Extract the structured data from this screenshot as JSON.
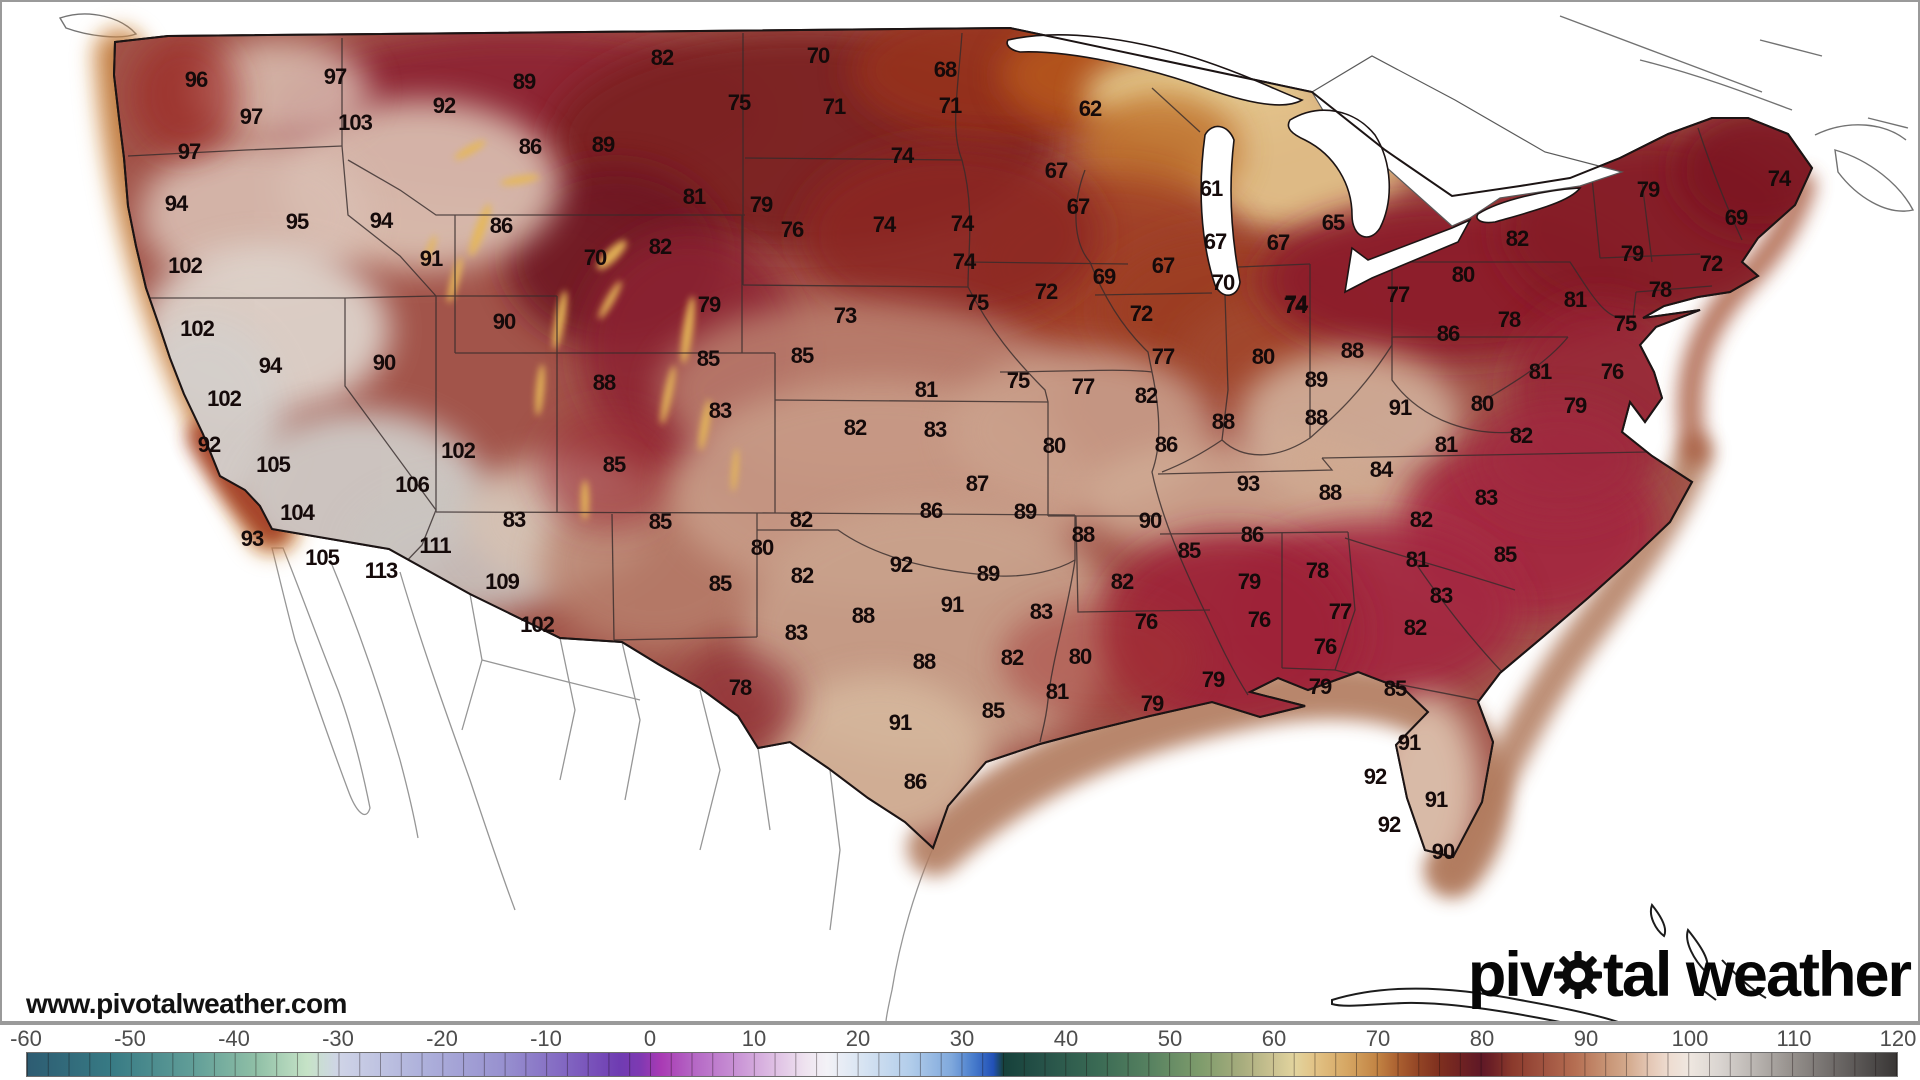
{
  "watermark": "www.pivotalweather.com",
  "logo": {
    "pre": "piv",
    "gear_icon": "gear",
    "post": "tal weather"
  },
  "colors": {
    "label": "#150a0a",
    "tick": "#4d4d4d",
    "divider": "#9a9a9a",
    "logo": "#060606",
    "land_base": "#a2544a",
    "coast_pacific_band": "#c07a40",
    "coast_gulf_band": "#b17a5d"
  },
  "colorbar": {
    "unit": "degF",
    "min": -60,
    "max": 120,
    "cell_step": 2,
    "ticks": [
      -60,
      -50,
      -40,
      -30,
      -20,
      -10,
      0,
      10,
      20,
      30,
      40,
      50,
      60,
      70,
      80,
      90,
      100,
      110,
      120
    ],
    "stops": [
      [
        -60,
        "#2d5c72"
      ],
      [
        -52,
        "#377a84"
      ],
      [
        -44,
        "#619e98"
      ],
      [
        -38,
        "#8fbfa6"
      ],
      [
        -33,
        "#c6e3c7"
      ],
      [
        -30,
        "#cfd4e7"
      ],
      [
        -22,
        "#aeb1db"
      ],
      [
        -14,
        "#9790cf"
      ],
      [
        -8,
        "#8165c1"
      ],
      [
        -3,
        "#6f3cb2"
      ],
      [
        -1,
        "#7e39b2"
      ],
      [
        1,
        "#a93ab4"
      ],
      [
        4,
        "#b465c4"
      ],
      [
        8,
        "#c78fd4"
      ],
      [
        12,
        "#dfc0e4"
      ],
      [
        15,
        "#efe4f0"
      ],
      [
        17,
        "#f3f2f7"
      ],
      [
        20,
        "#dbe6f3"
      ],
      [
        25,
        "#b2cdea"
      ],
      [
        29,
        "#7fa8dc"
      ],
      [
        31,
        "#4a7ecd"
      ],
      [
        33,
        "#2251b7"
      ],
      [
        34,
        "#16413b"
      ],
      [
        38,
        "#275349"
      ],
      [
        43,
        "#3a6a54"
      ],
      [
        48,
        "#568160"
      ],
      [
        53,
        "#7f9c6c"
      ],
      [
        57,
        "#a8ad7e"
      ],
      [
        60,
        "#ccc392"
      ],
      [
        62,
        "#e2d49e"
      ],
      [
        64,
        "#e2c285"
      ],
      [
        67,
        "#d6a764"
      ],
      [
        70,
        "#c28343"
      ],
      [
        72,
        "#aa5f30"
      ],
      [
        74,
        "#924425"
      ],
      [
        76,
        "#7e2f1f"
      ],
      [
        78,
        "#6f2222"
      ],
      [
        80,
        "#5f1826"
      ],
      [
        81,
        "#6c2026"
      ],
      [
        83,
        "#8b3a2c"
      ],
      [
        86,
        "#a05340"
      ],
      [
        89,
        "#b56e52"
      ],
      [
        92,
        "#c79374"
      ],
      [
        94,
        "#d3a98c"
      ],
      [
        96,
        "#e3c5b2"
      ],
      [
        98,
        "#eedcd0"
      ],
      [
        100,
        "#efe7e0"
      ],
      [
        103,
        "#d9d4d0"
      ],
      [
        106,
        "#bdb8b4"
      ],
      [
        110,
        "#948f8b"
      ],
      [
        114,
        "#6e6a68"
      ],
      [
        118,
        "#4a4746"
      ],
      [
        120,
        "#393635"
      ]
    ]
  },
  "map": {
    "type": "surface-temperature-analysis",
    "region": "CONUS",
    "temperature_labels": [
      [
        96,
        196,
        81
      ],
      [
        97,
        335,
        78
      ],
      [
        89,
        524,
        83
      ],
      [
        97,
        251,
        118
      ],
      [
        103,
        355,
        124
      ],
      [
        92,
        444,
        107
      ],
      [
        86,
        530,
        148
      ],
      [
        89,
        603,
        146
      ],
      [
        97,
        189,
        153
      ],
      [
        94,
        176,
        205
      ],
      [
        95,
        297,
        223
      ],
      [
        94,
        381,
        222
      ],
      [
        86,
        501,
        227
      ],
      [
        91,
        431,
        260
      ],
      [
        70,
        595,
        259
      ],
      [
        102,
        185,
        267
      ],
      [
        102,
        197,
        330
      ],
      [
        90,
        504,
        323
      ],
      [
        94,
        270,
        367
      ],
      [
        90,
        384,
        364
      ],
      [
        88,
        604,
        384
      ],
      [
        102,
        224,
        400
      ],
      [
        92,
        209,
        446
      ],
      [
        102,
        458,
        452
      ],
      [
        105,
        273,
        466
      ],
      [
        85,
        614,
        466
      ],
      [
        106,
        412,
        486
      ],
      [
        104,
        297,
        514
      ],
      [
        83,
        514,
        521
      ],
      [
        93,
        252,
        540
      ],
      [
        111,
        435,
        547
      ],
      [
        105,
        322,
        559
      ],
      [
        113,
        381,
        572
      ],
      [
        109,
        502,
        583
      ],
      [
        102,
        537,
        626
      ],
      [
        82,
        662,
        59
      ],
      [
        70,
        818,
        57
      ],
      [
        68,
        945,
        71
      ],
      [
        62,
        1090,
        110
      ],
      [
        75,
        739,
        104
      ],
      [
        71,
        834,
        108
      ],
      [
        71,
        950,
        107
      ],
      [
        74,
        902,
        157
      ],
      [
        67,
        1056,
        172
      ],
      [
        67,
        1078,
        208
      ],
      [
        61,
        1211,
        190
      ],
      [
        65,
        1333,
        224
      ],
      [
        81,
        694,
        198
      ],
      [
        79,
        761,
        206
      ],
      [
        76,
        792,
        231
      ],
      [
        74,
        884,
        226
      ],
      [
        74,
        962,
        225
      ],
      [
        82,
        660,
        248
      ],
      [
        67,
        1215,
        243
      ],
      [
        67,
        1278,
        244
      ],
      [
        74,
        964,
        263
      ],
      [
        67,
        1163,
        267
      ],
      [
        69,
        1104,
        278
      ],
      [
        70,
        1223,
        284
      ],
      [
        72,
        1046,
        293
      ],
      [
        72,
        1141,
        315
      ],
      [
        75,
        977,
        304
      ],
      [
        73,
        845,
        317
      ],
      [
        74,
        1295,
        307
      ],
      [
        79,
        709,
        306
      ],
      [
        85,
        708,
        360
      ],
      [
        85,
        802,
        357
      ],
      [
        77,
        1163,
        358
      ],
      [
        80,
        1263,
        358
      ],
      [
        88,
        1352,
        352
      ],
      [
        74,
        1779,
        180
      ],
      [
        69,
        1736,
        219
      ],
      [
        79,
        1648,
        191
      ],
      [
        82,
        1517,
        240
      ],
      [
        79,
        1632,
        255
      ],
      [
        72,
        1711,
        265
      ],
      [
        80,
        1463,
        276
      ],
      [
        78,
        1660,
        291
      ],
      [
        77,
        1398,
        296
      ],
      [
        74,
        1296,
        305
      ],
      [
        81,
        1575,
        301
      ],
      [
        78,
        1509,
        321
      ],
      [
        86,
        1448,
        335
      ],
      [
        75,
        1625,
        325
      ],
      [
        81,
        1540,
        373
      ],
      [
        76,
        1612,
        373
      ],
      [
        81,
        926,
        391
      ],
      [
        75,
        1018,
        382
      ],
      [
        77,
        1083,
        388
      ],
      [
        82,
        1146,
        397
      ],
      [
        88,
        1223,
        423
      ],
      [
        83,
        720,
        412
      ],
      [
        82,
        855,
        429
      ],
      [
        83,
        935,
        431
      ],
      [
        80,
        1054,
        447
      ],
      [
        86,
        1166,
        446
      ],
      [
        93,
        1248,
        485
      ],
      [
        87,
        977,
        485
      ],
      [
        86,
        931,
        512
      ],
      [
        89,
        1025,
        513
      ],
      [
        85,
        660,
        523
      ],
      [
        82,
        801,
        521
      ],
      [
        88,
        1083,
        536
      ],
      [
        90,
        1150,
        522
      ],
      [
        86,
        1252,
        536
      ],
      [
        80,
        762,
        549
      ],
      [
        85,
        1189,
        552
      ],
      [
        92,
        901,
        566
      ],
      [
        89,
        988,
        575
      ],
      [
        82,
        802,
        577
      ],
      [
        85,
        720,
        585
      ],
      [
        82,
        1122,
        583
      ],
      [
        79,
        1249,
        583
      ],
      [
        91,
        952,
        606
      ],
      [
        83,
        1041,
        613
      ],
      [
        76,
        1146,
        623
      ],
      [
        76,
        1259,
        621
      ],
      [
        88,
        863,
        617
      ],
      [
        83,
        796,
        634
      ],
      [
        88,
        924,
        663
      ],
      [
        82,
        1012,
        659
      ],
      [
        80,
        1080,
        658
      ],
      [
        78,
        740,
        689
      ],
      [
        81,
        1057,
        693
      ],
      [
        79,
        1213,
        681
      ],
      [
        79,
        1152,
        705
      ],
      [
        85,
        993,
        712
      ],
      [
        91,
        900,
        724
      ],
      [
        86,
        915,
        783
      ],
      [
        89,
        1316,
        381
      ],
      [
        88,
        1316,
        419
      ],
      [
        91,
        1400,
        409
      ],
      [
        80,
        1482,
        405
      ],
      [
        82,
        1521,
        437
      ],
      [
        81,
        1446,
        446
      ],
      [
        84,
        1381,
        471
      ],
      [
        88,
        1330,
        494
      ],
      [
        83,
        1486,
        499
      ],
      [
        79,
        1575,
        407
      ],
      [
        82,
        1421,
        521
      ],
      [
        81,
        1417,
        561
      ],
      [
        85,
        1505,
        556
      ],
      [
        78,
        1317,
        572
      ],
      [
        83,
        1441,
        597
      ],
      [
        77,
        1340,
        613
      ],
      [
        82,
        1415,
        629
      ],
      [
        76,
        1325,
        648
      ],
      [
        79,
        1320,
        688
      ],
      [
        85,
        1395,
        690
      ],
      [
        91,
        1409,
        744
      ],
      [
        92,
        1375,
        778
      ],
      [
        91,
        1436,
        801
      ],
      [
        92,
        1389,
        826
      ],
      [
        90,
        1443,
        853
      ]
    ]
  }
}
